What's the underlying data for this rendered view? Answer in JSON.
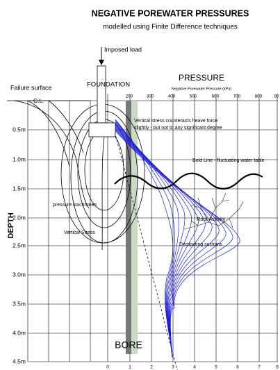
{
  "header": {
    "title": "NEGATIVE POREWATER PRESSURES",
    "subtitle": "modelled using Finite Difference techniques"
  },
  "labels": {
    "imposed_load": "Imposed load",
    "foundation": "FOUNDATION",
    "failure_surface": "Failure surface",
    "ground_level": "G.L.",
    "pressure": "PRESSURE",
    "pressure_axis": "Negative Porewater Pressure (kPa)",
    "depth": "DEPTH",
    "vertical_stress_note": [
      "Vertical stress counteracts heave force",
      "slightly - but not to any significant degree"
    ],
    "water_table": "Bold Line - fluctuating water table",
    "isochrones": "pressure isochrones",
    "vertical_stress": "Vertical Stress",
    "root_activity": "Root Activity",
    "dissipating": "Dissipating suctions",
    "bore": "BORE"
  },
  "pressure_ticks": [
    "200",
    "300",
    "400",
    "500",
    "600",
    "700",
    "800",
    "90"
  ],
  "depth_ticks": [
    "0.5m",
    "1.0m",
    "1.5m",
    "2.0m",
    "2.5m",
    "3.0m",
    "3.5m",
    "4.0m",
    "4.5m"
  ],
  "bottom_ticks": [
    "0",
    "1",
    "2",
    "3",
    "4",
    "5",
    "6",
    "7",
    "8"
  ]
}
